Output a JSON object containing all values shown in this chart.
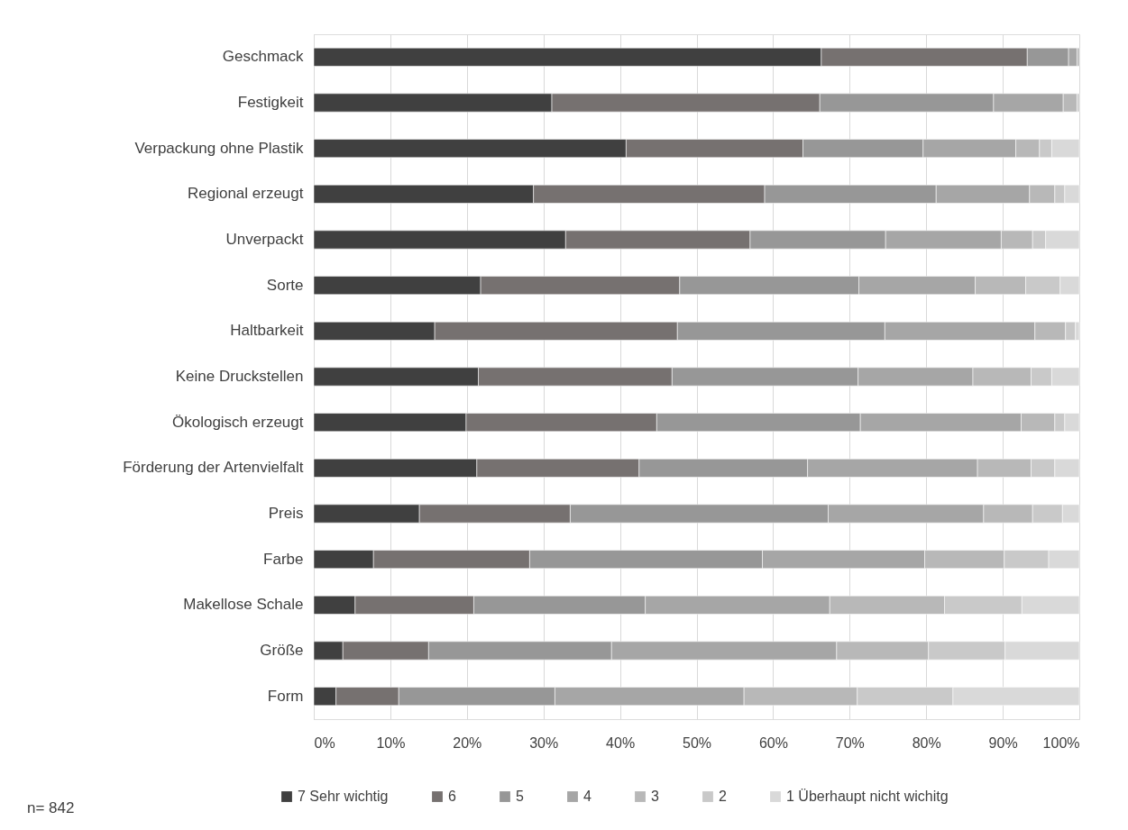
{
  "chart_data": {
    "type": "bar",
    "orientation": "horizontal",
    "stacked": true,
    "categories": [
      "Geschmack",
      "Festigkeit",
      "Verpackung ohne Plastik",
      "Regional erzeugt",
      "Unverpackt",
      "Sorte",
      "Haltbarkeit",
      "Keine Druckstellen",
      "Ökologisch erzeugt",
      "Förderung der Artenvielfalt",
      "Preis",
      "Farbe",
      "Makellose Schale",
      "Größe",
      "Form"
    ],
    "series": [
      {
        "name": "7 Sehr wichtig",
        "color": "#404040",
        "values": [
          66.3,
          31.1,
          40.8,
          28.7,
          32.9,
          21.8,
          15.8,
          21.5,
          19.9,
          21.3,
          13.8,
          7.8,
          5.4,
          3.8,
          2.9
        ]
      },
      {
        "name": "6",
        "color": "#767170",
        "values": [
          26.9,
          35.0,
          23.1,
          30.2,
          24.1,
          26.0,
          31.7,
          25.3,
          24.9,
          21.2,
          19.7,
          20.4,
          15.5,
          11.2,
          8.2
        ]
      },
      {
        "name": "5",
        "color": "#979797",
        "values": [
          5.4,
          22.7,
          15.7,
          22.4,
          17.7,
          23.4,
          27.1,
          24.3,
          26.6,
          22.0,
          33.7,
          30.4,
          22.4,
          23.9,
          20.4
        ]
      },
      {
        "name": "4",
        "color": "#a6a6a6",
        "values": [
          1.1,
          9.1,
          12.1,
          12.2,
          15.1,
          15.2,
          19.6,
          15.0,
          21.0,
          22.2,
          20.3,
          21.2,
          24.1,
          29.4,
          24.7
        ]
      },
      {
        "name": "3",
        "color": "#b8b8b8",
        "values": [
          0.3,
          1.8,
          3.1,
          3.3,
          4.1,
          6.6,
          4.0,
          7.6,
          4.4,
          7.0,
          6.4,
          10.4,
          15.0,
          12.0,
          14.8
        ]
      },
      {
        "name": "2",
        "color": "#c9c9c9",
        "values": [
          null,
          0.3,
          1.6,
          1.3,
          1.7,
          4.5,
          1.3,
          2.7,
          1.3,
          3.1,
          3.9,
          5.8,
          10.1,
          10.0,
          12.5
        ]
      },
      {
        "name": "1 Überhaupt nicht wichitg",
        "color": "#d9d9d9",
        "values": [
          null,
          null,
          3.6,
          1.9,
          4.4,
          2.5,
          0.5,
          3.6,
          1.9,
          3.2,
          2.2,
          4.0,
          7.5,
          9.7,
          16.5
        ]
      }
    ],
    "xlim": [
      0,
      100
    ],
    "xticks": [
      {
        "value": 0,
        "label": "0%"
      },
      {
        "value": 10,
        "label": "10%"
      },
      {
        "value": 20,
        "label": "20%"
      },
      {
        "value": 30,
        "label": "30%"
      },
      {
        "value": 40,
        "label": "40%"
      },
      {
        "value": 50,
        "label": "50%"
      },
      {
        "value": 60,
        "label": "60%"
      },
      {
        "value": 70,
        "label": "70%"
      },
      {
        "value": 80,
        "label": "80%"
      },
      {
        "value": 90,
        "label": "90%"
      },
      {
        "value": 100,
        "label": "100%"
      }
    ],
    "grid": "x",
    "legend": "bottom",
    "annotations": [
      "n= 842"
    ]
  }
}
